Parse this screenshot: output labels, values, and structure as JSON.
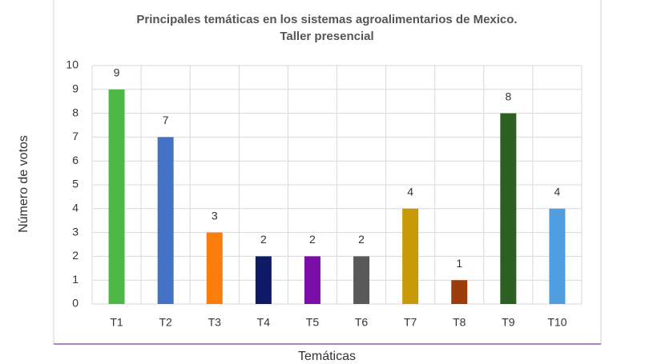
{
  "chart_data": {
    "type": "bar",
    "title": "Principales temáticas en los sistemas agroalimentarios de Mexico.",
    "subtitle": "Taller presencial",
    "x_label": "Temáticas",
    "y_label": "Número de votos",
    "categories": [
      "T1",
      "T2",
      "T3",
      "T4",
      "T5",
      "T6",
      "T7",
      "T8",
      "T9",
      "T10"
    ],
    "values": [
      9,
      7,
      3,
      2,
      2,
      2,
      4,
      1,
      8,
      4
    ],
    "colors": [
      "#4db848",
      "#4472c4",
      "#fb7d0c",
      "#0e1a66",
      "#7b0ea8",
      "#595959",
      "#c89a06",
      "#9a3d0a",
      "#2d5f23",
      "#4f9fe0"
    ],
    "ylim": [
      0,
      10
    ],
    "yticks": [
      0,
      1,
      2,
      3,
      4,
      5,
      6,
      7,
      8,
      9,
      10
    ],
    "grid": true
  }
}
